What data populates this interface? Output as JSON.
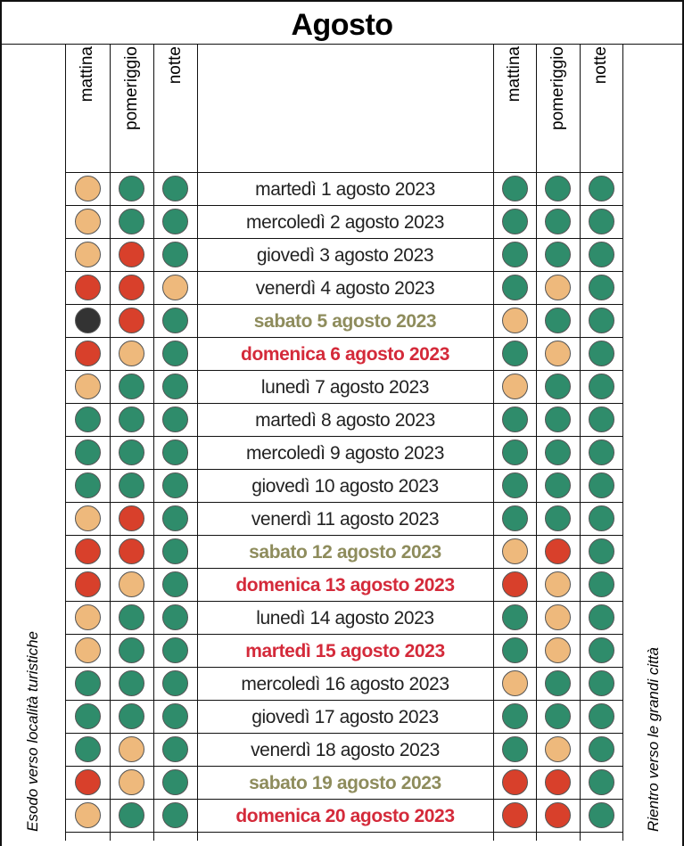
{
  "header": {
    "title": "Agosto"
  },
  "side_labels": {
    "left": "Esodo verso località turistiche",
    "right": "Rientro verso le grandi città"
  },
  "columns": {
    "left": [
      "mattina",
      "pomeriggio",
      "notte"
    ],
    "right": [
      "mattina",
      "pomeriggio",
      "notte"
    ]
  },
  "rows": [
    {
      "date": "martedì 1 agosto 2023",
      "color": "#222222",
      "bold": false,
      "outbound": [
        "#eeb97c",
        "#2f8c6b",
        "#2f8c6b"
      ],
      "return": [
        "#2f8c6b",
        "#2f8c6b",
        "#2f8c6b"
      ]
    },
    {
      "date": "mercoledì 2 agosto 2023",
      "color": "#222222",
      "bold": false,
      "outbound": [
        "#eeb97c",
        "#2f8c6b",
        "#2f8c6b"
      ],
      "return": [
        "#2f8c6b",
        "#2f8c6b",
        "#2f8c6b"
      ]
    },
    {
      "date": "giovedì 3 agosto 2023",
      "color": "#222222",
      "bold": false,
      "outbound": [
        "#eeb97c",
        "#d8402b",
        "#2f8c6b"
      ],
      "return": [
        "#2f8c6b",
        "#2f8c6b",
        "#2f8c6b"
      ]
    },
    {
      "date": "venerdì 4 agosto 2023",
      "color": "#222222",
      "bold": false,
      "outbound": [
        "#d8402b",
        "#d8402b",
        "#eeb97c"
      ],
      "return": [
        "#2f8c6b",
        "#eeb97c",
        "#2f8c6b"
      ]
    },
    {
      "date": "sabato 5 agosto 2023",
      "color": "#8e8c5c",
      "bold": true,
      "outbound": [
        "#333333",
        "#d8402b",
        "#2f8c6b"
      ],
      "return": [
        "#eeb97c",
        "#2f8c6b",
        "#2f8c6b"
      ]
    },
    {
      "date": "domenica 6 agosto 2023",
      "color": "#d42a3a",
      "bold": true,
      "outbound": [
        "#d8402b",
        "#eeb97c",
        "#2f8c6b"
      ],
      "return": [
        "#2f8c6b",
        "#eeb97c",
        "#2f8c6b"
      ]
    },
    {
      "date": "lunedì 7 agosto 2023",
      "color": "#222222",
      "bold": false,
      "outbound": [
        "#eeb97c",
        "#2f8c6b",
        "#2f8c6b"
      ],
      "return": [
        "#eeb97c",
        "#2f8c6b",
        "#2f8c6b"
      ]
    },
    {
      "date": "martedì 8 agosto 2023",
      "color": "#222222",
      "bold": false,
      "outbound": [
        "#2f8c6b",
        "#2f8c6b",
        "#2f8c6b"
      ],
      "return": [
        "#2f8c6b",
        "#2f8c6b",
        "#2f8c6b"
      ]
    },
    {
      "date": "mercoledì 9 agosto 2023",
      "color": "#222222",
      "bold": false,
      "outbound": [
        "#2f8c6b",
        "#2f8c6b",
        "#2f8c6b"
      ],
      "return": [
        "#2f8c6b",
        "#2f8c6b",
        "#2f8c6b"
      ]
    },
    {
      "date": "giovedì 10 agosto 2023",
      "color": "#222222",
      "bold": false,
      "outbound": [
        "#2f8c6b",
        "#2f8c6b",
        "#2f8c6b"
      ],
      "return": [
        "#2f8c6b",
        "#2f8c6b",
        "#2f8c6b"
      ]
    },
    {
      "date": "venerdì 11 agosto 2023",
      "color": "#222222",
      "bold": false,
      "outbound": [
        "#eeb97c",
        "#d8402b",
        "#2f8c6b"
      ],
      "return": [
        "#2f8c6b",
        "#2f8c6b",
        "#2f8c6b"
      ]
    },
    {
      "date": "sabato 12 agosto 2023",
      "color": "#8e8c5c",
      "bold": true,
      "outbound": [
        "#d8402b",
        "#d8402b",
        "#2f8c6b"
      ],
      "return": [
        "#eeb97c",
        "#d8402b",
        "#2f8c6b"
      ]
    },
    {
      "date": "domenica 13 agosto 2023",
      "color": "#d42a3a",
      "bold": true,
      "outbound": [
        "#d8402b",
        "#eeb97c",
        "#2f8c6b"
      ],
      "return": [
        "#d8402b",
        "#eeb97c",
        "#2f8c6b"
      ]
    },
    {
      "date": "lunedì 14 agosto 2023",
      "color": "#222222",
      "bold": false,
      "outbound": [
        "#eeb97c",
        "#2f8c6b",
        "#2f8c6b"
      ],
      "return": [
        "#2f8c6b",
        "#eeb97c",
        "#2f8c6b"
      ]
    },
    {
      "date": "martedì 15 agosto 2023",
      "color": "#d42a3a",
      "bold": true,
      "outbound": [
        "#eeb97c",
        "#2f8c6b",
        "#2f8c6b"
      ],
      "return": [
        "#2f8c6b",
        "#eeb97c",
        "#2f8c6b"
      ]
    },
    {
      "date": "mercoledì 16 agosto 2023",
      "color": "#222222",
      "bold": false,
      "outbound": [
        "#2f8c6b",
        "#2f8c6b",
        "#2f8c6b"
      ],
      "return": [
        "#eeb97c",
        "#2f8c6b",
        "#2f8c6b"
      ]
    },
    {
      "date": "giovedì 17 agosto 2023",
      "color": "#222222",
      "bold": false,
      "outbound": [
        "#2f8c6b",
        "#2f8c6b",
        "#2f8c6b"
      ],
      "return": [
        "#2f8c6b",
        "#2f8c6b",
        "#2f8c6b"
      ]
    },
    {
      "date": "venerdì 18 agosto 2023",
      "color": "#222222",
      "bold": false,
      "outbound": [
        "#2f8c6b",
        "#eeb97c",
        "#2f8c6b"
      ],
      "return": [
        "#2f8c6b",
        "#eeb97c",
        "#2f8c6b"
      ]
    },
    {
      "date": "sabato 19 agosto 2023",
      "color": "#8e8c5c",
      "bold": true,
      "outbound": [
        "#d8402b",
        "#eeb97c",
        "#2f8c6b"
      ],
      "return": [
        "#d8402b",
        "#d8402b",
        "#2f8c6b"
      ]
    },
    {
      "date": "domenica 20 agosto 2023",
      "color": "#d42a3a",
      "bold": true,
      "outbound": [
        "#eeb97c",
        "#2f8c6b",
        "#2f8c6b"
      ],
      "return": [
        "#d8402b",
        "#d8402b",
        "#2f8c6b"
      ]
    }
  ]
}
